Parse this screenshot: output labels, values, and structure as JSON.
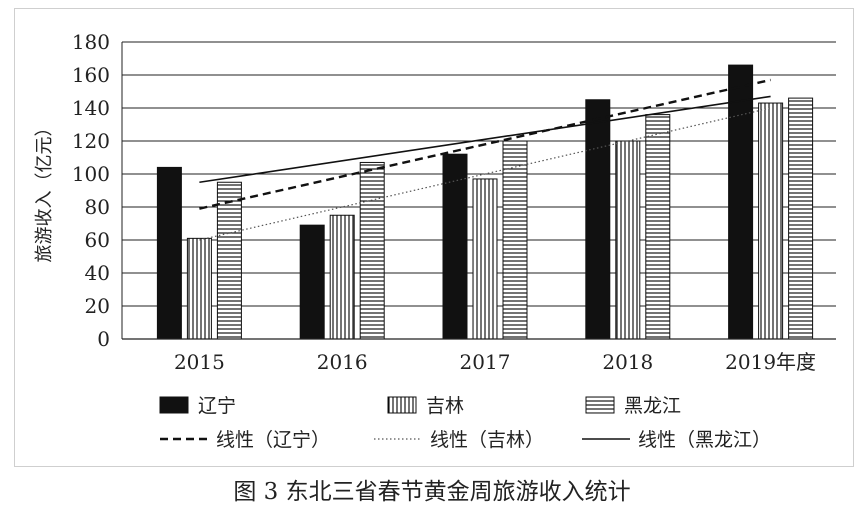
{
  "chart_data": {
    "type": "bar",
    "categories": [
      "2015",
      "2016",
      "2017",
      "2018",
      "2019年度"
    ],
    "series": [
      {
        "name": "辽宁",
        "values": [
          104,
          69,
          112,
          145,
          166
        ],
        "pattern": "solid"
      },
      {
        "name": "吉林",
        "values": [
          61,
          75,
          97,
          120,
          143
        ],
        "pattern": "vertical"
      },
      {
        "name": "黑龙江",
        "values": [
          95,
          107,
          120,
          136,
          146
        ],
        "pattern": "horizontal"
      }
    ],
    "trendlines": [
      {
        "name": "线性（辽宁）",
        "style": "dashed",
        "from": 79,
        "to": 157
      },
      {
        "name": "线性（吉林）",
        "style": "dotted",
        "from": 60,
        "to": 140
      },
      {
        "name": "线性（黑龙江）",
        "style": "solid",
        "from": 95,
        "to": 147
      }
    ],
    "ylabel": "旅游收入（亿元）",
    "ylim": [
      0,
      180
    ],
    "yticks": [
      0,
      20,
      40,
      60,
      80,
      100,
      120,
      140,
      160,
      180
    ],
    "grid": true,
    "legend_position": "bottom"
  },
  "caption": "图 3  东北三省春节黄金周旅游收入统计"
}
